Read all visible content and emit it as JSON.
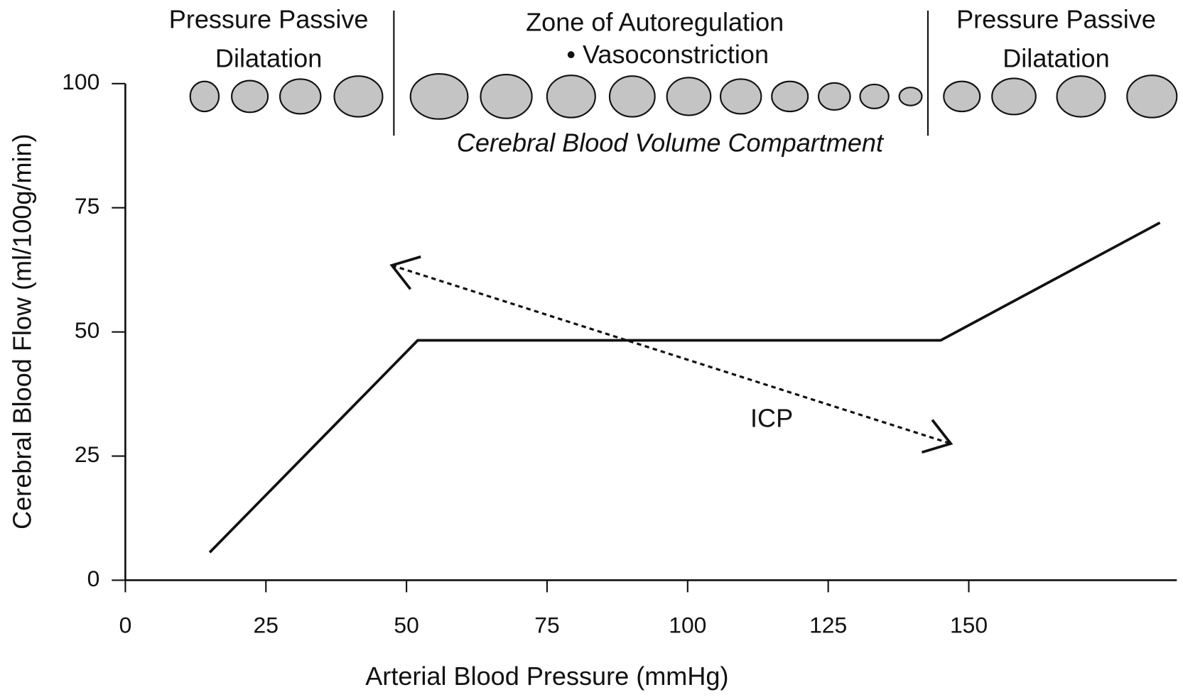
{
  "chart_data": {
    "type": "line",
    "xlabel": "Arterial Blood Pressure (mmHg)",
    "ylabel": "Cerebral Blood Flow (ml/100g/min)",
    "x": [
      15,
      52,
      145,
      184
    ],
    "series": [
      {
        "color": "#111111",
        "values": [
          5.6,
          48.3,
          48.3,
          72
        ]
      }
    ],
    "xlim": [
      0,
      187
    ],
    "ylim": [
      0,
      100
    ],
    "xticks": [
      0,
      25,
      50,
      75,
      100,
      125,
      150
    ],
    "yticks": [
      0,
      25,
      50,
      75,
      100
    ],
    "grid": false,
    "region_labels": [
      "Pressure Passive",
      "Dilatation",
      "Zone of Autoregulation",
      "• Vasoconstriction",
      "Pressure Passive",
      "Dilatation"
    ],
    "compartment_label": "Cerebral Blood Volume Compartment",
    "annotation": {
      "text": "ICP",
      "x": [
        47.4,
        146.8
      ],
      "y": [
        63.4,
        27.5
      ]
    }
  }
}
